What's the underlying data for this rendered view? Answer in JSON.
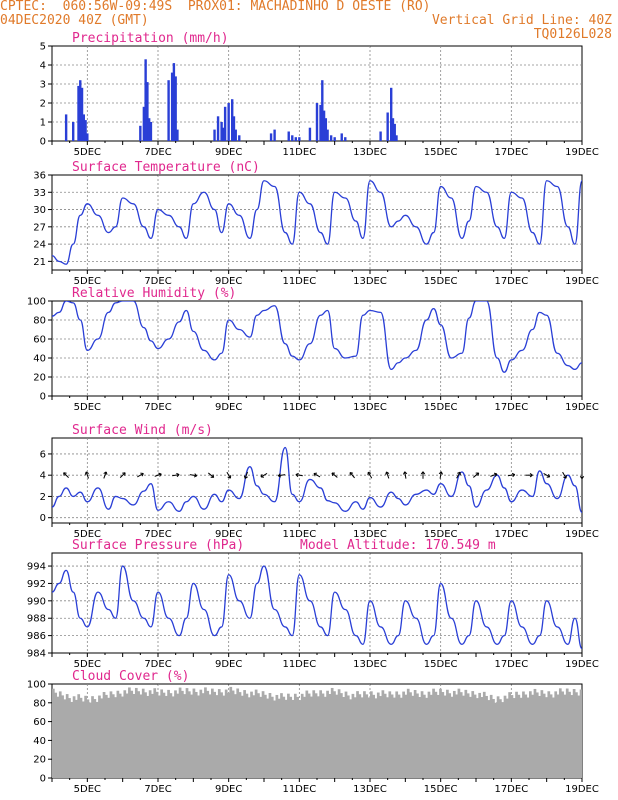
{
  "header": {
    "line1_left": "CPTEC:  060:56W-09:49S  PROX01: MACHADINHO D OESTE (RO)",
    "line2_left": "04DEC2020 40Z (GMT)",
    "line2_right": "Vertical Grid Line: 40Z",
    "line3_right": "TQ0126L028"
  },
  "colors": {
    "line": "#2a3fd6",
    "bar": "#2a3fd6",
    "cloud": "#aaaaaa",
    "title": "#e0288e",
    "header": "#e07a2a"
  },
  "x_tick_labels": [
    "5DEC",
    "7DEC",
    "9DEC",
    "11DEC",
    "13DEC",
    "15DEC",
    "17DEC",
    "19DEC"
  ],
  "chart_data": [
    {
      "id": "precip",
      "type": "bar",
      "title": "Precipitation (mm/h)",
      "ylim": [
        0,
        5
      ],
      "yticks": [
        0,
        1,
        2,
        3,
        4,
        5
      ],
      "x_range": [
        4.0,
        19.0
      ],
      "x": [
        4.4,
        4.6,
        4.75,
        4.8,
        4.85,
        4.9,
        4.95,
        5.0,
        6.5,
        6.6,
        6.65,
        6.7,
        6.75,
        6.8,
        7.3,
        7.4,
        7.45,
        7.5,
        7.55,
        8.6,
        8.7,
        8.8,
        8.85,
        8.9,
        9.0,
        9.1,
        9.15,
        9.2,
        9.3,
        10.2,
        10.3,
        10.7,
        10.8,
        10.9,
        11.0,
        11.3,
        11.5,
        11.6,
        11.65,
        11.7,
        11.75,
        11.8,
        11.9,
        12.0,
        12.2,
        12.3,
        13.3,
        13.5,
        13.6,
        13.65,
        13.7,
        13.75
      ],
      "values": [
        1.4,
        1.0,
        2.9,
        3.2,
        2.8,
        1.4,
        1.1,
        0.4,
        0.8,
        1.8,
        4.3,
        3.1,
        1.2,
        1.0,
        3.2,
        3.6,
        4.1,
        3.4,
        0.6,
        0.6,
        1.3,
        1.0,
        0.7,
        1.8,
        2.0,
        2.2,
        1.3,
        0.6,
        0.3,
        0.4,
        0.6,
        0.5,
        0.3,
        0.2,
        0.2,
        0.7,
        2.0,
        1.9,
        3.2,
        1.6,
        1.2,
        0.6,
        0.3,
        0.2,
        0.4,
        0.2,
        0.5,
        1.5,
        2.8,
        1.2,
        0.9,
        0.3
      ]
    },
    {
      "id": "temp",
      "type": "line",
      "title": "Surface Temperature (nC)",
      "ylim": [
        19.5,
        36
      ],
      "yticks": [
        21,
        24,
        27,
        30,
        33,
        36
      ],
      "x_range": [
        4.0,
        19.0
      ],
      "x": [
        4.0,
        4.2,
        4.4,
        4.6,
        4.8,
        5.0,
        5.3,
        5.6,
        5.8,
        6.0,
        6.3,
        6.6,
        6.8,
        7.0,
        7.3,
        7.6,
        7.8,
        8.0,
        8.3,
        8.6,
        8.8,
        9.0,
        9.3,
        9.6,
        9.8,
        10.0,
        10.3,
        10.6,
        10.8,
        11.0,
        11.3,
        11.6,
        11.8,
        12.0,
        12.3,
        12.6,
        12.8,
        13.0,
        13.3,
        13.6,
        13.8,
        14.0,
        14.3,
        14.6,
        14.8,
        15.0,
        15.3,
        15.6,
        15.8,
        16.0,
        16.3,
        16.6,
        16.8,
        17.0,
        17.3,
        17.6,
        17.8,
        18.0,
        18.3,
        18.6,
        18.8,
        19.0
      ],
      "values": [
        22,
        21,
        20.5,
        24,
        29,
        31,
        29,
        26,
        27,
        32,
        31,
        27,
        25,
        30,
        29,
        27,
        25,
        31,
        33,
        30,
        26,
        31,
        29,
        25,
        30,
        35,
        34,
        26,
        24,
        33,
        31,
        26,
        24,
        33,
        32,
        28,
        25,
        35,
        33,
        27,
        28,
        29,
        27,
        24,
        26,
        34,
        32,
        25,
        28,
        34,
        33,
        27,
        25,
        33,
        32,
        26,
        24,
        35,
        34,
        27,
        24,
        35
      ]
    },
    {
      "id": "rh",
      "type": "line",
      "title": "Relative Humidity (%)",
      "ylim": [
        0,
        100
      ],
      "yticks": [
        0,
        20,
        40,
        60,
        80,
        100
      ],
      "x_range": [
        4.0,
        19.0
      ],
      "x": [
        4.0,
        4.2,
        4.4,
        4.6,
        4.8,
        5.0,
        5.3,
        5.6,
        5.8,
        6.0,
        6.3,
        6.6,
        6.8,
        7.0,
        7.3,
        7.6,
        7.8,
        8.0,
        8.3,
        8.6,
        8.8,
        9.0,
        9.3,
        9.6,
        9.8,
        10.0,
        10.3,
        10.6,
        10.8,
        11.0,
        11.3,
        11.6,
        11.8,
        12.0,
        12.3,
        12.6,
        12.8,
        13.0,
        13.3,
        13.6,
        13.8,
        14.0,
        14.3,
        14.6,
        14.8,
        15.0,
        15.3,
        15.6,
        15.8,
        16.0,
        16.3,
        16.6,
        16.8,
        17.0,
        17.3,
        17.6,
        17.8,
        18.0,
        18.3,
        18.6,
        18.8,
        19.0
      ],
      "values": [
        84,
        88,
        100,
        98,
        80,
        48,
        60,
        88,
        98,
        100,
        100,
        72,
        58,
        50,
        60,
        78,
        90,
        68,
        48,
        38,
        45,
        80,
        70,
        62,
        85,
        90,
        95,
        55,
        42,
        38,
        55,
        85,
        90,
        50,
        40,
        42,
        85,
        90,
        88,
        28,
        35,
        40,
        48,
        80,
        92,
        75,
        40,
        45,
        82,
        100,
        100,
        40,
        25,
        38,
        48,
        70,
        88,
        85,
        45,
        32,
        28,
        35
      ]
    },
    {
      "id": "wind",
      "type": "line",
      "title": "Surface Wind (m/s)",
      "ylim": [
        -0.5,
        7.5
      ],
      "yticks": [
        0,
        2,
        4,
        6
      ],
      "x_range": [
        4.0,
        19.0
      ],
      "x": [
        4.0,
        4.2,
        4.4,
        4.6,
        4.8,
        5.0,
        5.3,
        5.6,
        5.8,
        6.0,
        6.3,
        6.6,
        6.8,
        7.0,
        7.3,
        7.6,
        7.8,
        8.0,
        8.3,
        8.6,
        8.8,
        9.0,
        9.3,
        9.6,
        9.8,
        10.0,
        10.3,
        10.6,
        10.8,
        11.0,
        11.3,
        11.6,
        11.8,
        12.0,
        12.3,
        12.6,
        12.8,
        13.0,
        13.3,
        13.6,
        13.8,
        14.0,
        14.3,
        14.6,
        14.8,
        15.0,
        15.3,
        15.6,
        15.8,
        16.0,
        16.3,
        16.6,
        16.8,
        17.0,
        17.3,
        17.6,
        17.8,
        18.0,
        18.3,
        18.6,
        18.8,
        19.0
      ],
      "values": [
        1.0,
        2.0,
        2.8,
        2.0,
        2.4,
        1.5,
        2.8,
        0.8,
        2.0,
        1.8,
        1.2,
        2.5,
        3.2,
        0.7,
        1.5,
        0.6,
        1.5,
        2.0,
        0.8,
        2.2,
        1.5,
        2.6,
        1.8,
        4.8,
        3.0,
        2.2,
        1.5,
        6.6,
        2.2,
        1.5,
        3.6,
        2.8,
        1.6,
        1.4,
        0.6,
        1.5,
        0.8,
        1.9,
        1.0,
        2.4,
        1.8,
        1.2,
        2.2,
        2.6,
        2.2,
        3.2,
        2.0,
        4.3,
        3.0,
        1.0,
        2.6,
        4.0,
        2.8,
        1.5,
        2.6,
        2.0,
        4.4,
        3.2,
        1.8,
        4.0,
        3.0,
        0.5
      ],
      "arrow_x": [
        4.4,
        5.0,
        5.5,
        6.0,
        6.5,
        7.0,
        7.5,
        8.0,
        8.5,
        9.0,
        9.5,
        10.0,
        10.5,
        11.0,
        11.5,
        12.0,
        12.5,
        13.0,
        13.5,
        14.0,
        14.5,
        15.0,
        15.5,
        16.0,
        16.5,
        17.0,
        17.5,
        18.0,
        18.5,
        19.0
      ],
      "arrow_dir_deg": [
        135,
        110,
        70,
        45,
        30,
        20,
        10,
        350,
        320,
        300,
        250,
        210,
        190,
        170,
        150,
        140,
        130,
        120,
        110,
        100,
        90,
        80,
        60,
        40,
        20,
        10,
        0,
        330,
        300,
        270
      ]
    },
    {
      "id": "pres",
      "type": "line",
      "title": "Surface Pressure (hPa)",
      "annotation": "Model Altitude: 170.549 m",
      "ylim": [
        984,
        995.5
      ],
      "yticks": [
        984,
        986,
        988,
        990,
        992,
        994
      ],
      "x_range": [
        4.0,
        19.0
      ],
      "x": [
        4.0,
        4.2,
        4.4,
        4.6,
        4.8,
        5.0,
        5.3,
        5.6,
        5.8,
        6.0,
        6.3,
        6.6,
        6.8,
        7.0,
        7.3,
        7.6,
        7.8,
        8.0,
        8.3,
        8.6,
        8.8,
        9.0,
        9.3,
        9.6,
        9.8,
        10.0,
        10.3,
        10.6,
        10.8,
        11.0,
        11.3,
        11.6,
        11.8,
        12.0,
        12.3,
        12.6,
        12.8,
        13.0,
        13.3,
        13.6,
        13.8,
        14.0,
        14.3,
        14.6,
        14.8,
        15.0,
        15.3,
        15.6,
        15.8,
        16.0,
        16.3,
        16.6,
        16.8,
        17.0,
        17.3,
        17.6,
        17.8,
        18.0,
        18.3,
        18.6,
        18.8,
        19.0
      ],
      "values": [
        991,
        992,
        993.5,
        991,
        988,
        987,
        991,
        989,
        988,
        994,
        990,
        988,
        987,
        991,
        988,
        986,
        988,
        992,
        989,
        986,
        987,
        993,
        990,
        988,
        992,
        994,
        989,
        987,
        986,
        993,
        990,
        987,
        986,
        991,
        989,
        986,
        985,
        990,
        987,
        985,
        986,
        990,
        988,
        985,
        986,
        992,
        988,
        985,
        986,
        990,
        987,
        985,
        986,
        990,
        987,
        985,
        986,
        990,
        987,
        985,
        988,
        984.5
      ]
    },
    {
      "id": "cloud",
      "type": "bar",
      "title": "Cloud Cover (%)",
      "ylim": [
        0,
        100
      ],
      "yticks": [
        0,
        20,
        40,
        60,
        80,
        100
      ],
      "x_range": [
        4.0,
        19.0
      ],
      "profile_x": [
        4.0,
        4.5,
        5.0,
        5.5,
        6.0,
        6.5,
        7.0,
        7.5,
        8.0,
        8.5,
        9.0,
        9.5,
        10.0,
        10.5,
        11.0,
        11.5,
        12.0,
        12.5,
        13.0,
        13.5,
        14.0,
        14.5,
        15.0,
        15.5,
        16.0,
        16.5,
        17.0,
        17.5,
        18.0,
        18.5,
        19.0
      ],
      "profile_values": [
        95,
        90,
        88,
        92,
        96,
        97,
        95,
        96,
        97,
        96,
        97,
        95,
        93,
        90,
        92,
        95,
        96,
        92,
        94,
        93,
        95,
        94,
        96,
        95,
        94,
        88,
        92,
        95,
        94,
        96,
        97
      ]
    }
  ]
}
